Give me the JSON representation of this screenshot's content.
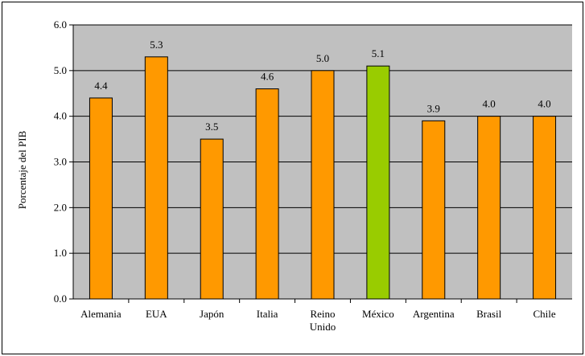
{
  "chart_data": {
    "type": "bar",
    "ylabel": "Porcentaje del PIB",
    "ylim": [
      0,
      6
    ],
    "ytick_labels": [
      "0.0",
      "1.0",
      "2.0",
      "3.0",
      "4.0",
      "5.0",
      "6.0"
    ],
    "categories": [
      [
        "Alemania"
      ],
      [
        "EUA"
      ],
      [
        "Japón"
      ],
      [
        "Italia"
      ],
      [
        "Reino",
        "Unido"
      ],
      [
        "México"
      ],
      [
        "Argentina"
      ],
      [
        "Brasil"
      ],
      [
        "Chile"
      ]
    ],
    "values": [
      4.4,
      5.3,
      3.5,
      4.6,
      5.0,
      5.1,
      3.9,
      4.0,
      4.0
    ],
    "value_labels": [
      "4.4",
      "5.3",
      "3.5",
      "4.6",
      "5.0",
      "5.1",
      "3.9",
      "4.0",
      "4.0"
    ],
    "highlight_category": "México",
    "grid": true,
    "colors": {
      "bar": "#FF9900",
      "highlight_bar": "#99CC00",
      "plot_background": "#C0C0C0",
      "gridline": "#000000"
    }
  }
}
